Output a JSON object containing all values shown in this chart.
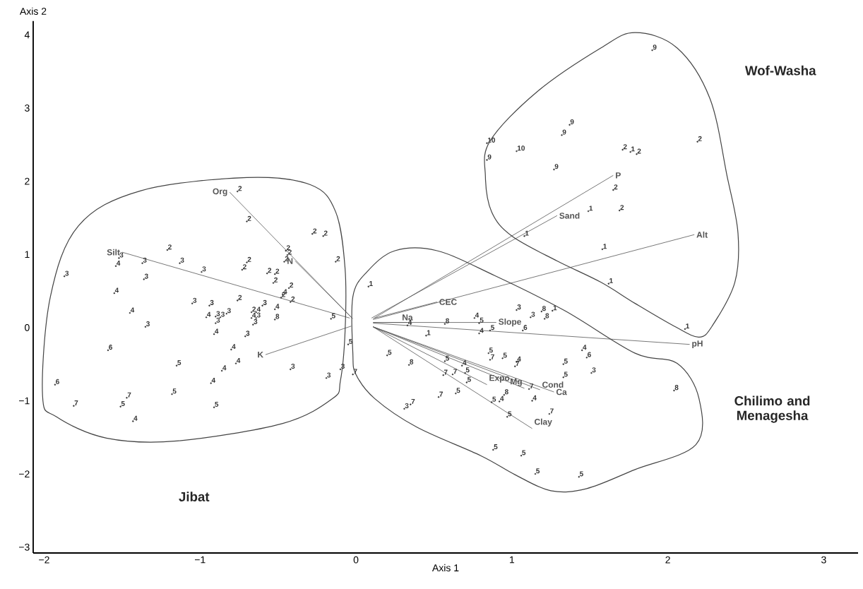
{
  "chart_data": {
    "type": "scatter",
    "xlabel": "Axis 1",
    "ylabel": "Axis 2",
    "xlim": [
      -2.07,
      3.22
    ],
    "ylim": [
      -3.08,
      4.19
    ],
    "xticks": [
      {
        "value": -2,
        "label": "−2"
      },
      {
        "value": -1,
        "label": "−1"
      },
      0,
      1,
      2,
      3
    ],
    "yticks": [
      {
        "value": -3,
        "label": "−3"
      },
      {
        "value": -2,
        "label": "−2"
      },
      {
        "value": -1,
        "label": "−1"
      },
      0,
      1,
      2,
      3,
      4
    ],
    "annotations": [
      "Wof-Washa",
      "Chilimo and Menagesha",
      "Jibat"
    ],
    "series": [
      {
        "name": "1",
        "color": "#333333",
        "x": [
          0.08,
          1.62,
          2.11,
          1.26,
          0.45,
          1.76,
          1.49,
          1.08,
          1.58
        ],
        "values": [
          0.56,
          0.6,
          -0.02,
          0.23,
          -0.11,
          2.4,
          1.59,
          1.25,
          1.07
        ]
      },
      {
        "name": "2",
        "color": "#333333",
        "x": [
          -0.76,
          -0.7,
          -0.28,
          -0.21,
          -1.21,
          -0.45,
          -0.44,
          -0.13,
          -0.46,
          -0.7,
          -0.73,
          -0.57,
          -0.52,
          -0.53,
          -0.43,
          -0.48,
          -0.42,
          -0.76,
          -0.67,
          1.71,
          1.8,
          2.19,
          1.65,
          1.69
        ],
        "values": [
          1.86,
          1.45,
          1.28,
          1.25,
          1.06,
          1.05,
          0.99,
          0.9,
          0.9,
          0.89,
          0.79,
          0.74,
          0.73,
          0.61,
          0.54,
          0.41,
          0.35,
          0.37,
          0.21,
          2.43,
          2.37,
          2.54,
          1.88,
          1.6
        ]
      },
      {
        "name": "3",
        "color": "#333333",
        "x": [
          -1.52,
          -1.37,
          -1.13,
          -0.99,
          -1.87,
          -1.36,
          -1.05,
          -0.94,
          -0.6,
          -0.9,
          -0.87,
          -0.83,
          -0.9,
          -0.64,
          -0.66,
          -1.35,
          -0.71,
          -0.42,
          -0.1,
          -0.19,
          1.03,
          1.12,
          1.51,
          0.31
        ],
        "values": [
          0.95,
          0.88,
          0.88,
          0.76,
          0.7,
          0.66,
          0.33,
          0.3,
          0.3,
          0.15,
          0.14,
          0.19,
          0.06,
          0.13,
          0.04,
          0.01,
          -0.12,
          -0.57,
          -0.57,
          -0.69,
          0.24,
          0.14,
          -0.62,
          -1.11
        ]
      },
      {
        "name": "4",
        "color": "#333333",
        "x": [
          -1.54,
          -0.47,
          -1.55,
          -1.45,
          -0.52,
          -0.96,
          -0.64,
          -0.67,
          -0.91,
          -0.8,
          -0.77,
          -0.86,
          -0.93,
          -1.43,
          0.33,
          0.76,
          0.79,
          0.68,
          1.03,
          1.45,
          0.92,
          1.13
        ],
        "values": [
          0.84,
          0.45,
          0.47,
          0.2,
          0.25,
          0.14,
          0.21,
          0.13,
          -0.09,
          -0.3,
          -0.49,
          -0.59,
          -0.76,
          -1.28,
          0.03,
          0.13,
          -0.08,
          -0.52,
          -0.47,
          -0.31,
          -1.01,
          -1.0
        ]
      },
      {
        "name": "5",
        "color": "#333333",
        "x": [
          -0.16,
          -0.05,
          -1.15,
          -1.51,
          -1.18,
          -0.91,
          0.79,
          0.86,
          0.2,
          0.57,
          0.7,
          0.71,
          0.85,
          0.94,
          1.33,
          1.33,
          0.64,
          0.87,
          0.97,
          0.88,
          1.06,
          1.15,
          1.43
        ],
        "values": [
          0.12,
          -0.23,
          -0.52,
          -1.08,
          -0.91,
          -1.09,
          0.06,
          -0.04,
          -0.38,
          -0.46,
          -0.62,
          -0.75,
          -0.35,
          -0.42,
          -0.5,
          -0.68,
          -0.9,
          -1.02,
          -1.22,
          -1.67,
          -1.75,
          -2.0,
          -2.04
        ]
      },
      {
        "name": "6",
        "color": "#333333",
        "x": [
          -1.59,
          -1.93,
          1.07,
          1.48
        ],
        "values": [
          -0.31,
          -0.78,
          -0.04,
          -0.41
        ]
      },
      {
        "name": "7",
        "color": "#333333",
        "x": [
          -0.02,
          -1.81,
          -1.47,
          0.56,
          0.62,
          0.86,
          1.02,
          1.11,
          0.53,
          1.24,
          0.35
        ],
        "values": [
          -0.64,
          -1.07,
          -0.96,
          -0.65,
          -0.64,
          -0.44,
          -0.53,
          -0.84,
          -0.95,
          -1.18,
          -1.05
        ]
      },
      {
        "name": "8",
        "color": "#333333",
        "x": [
          -0.52,
          0.57,
          1.19,
          1.21,
          0.34,
          2.04,
          0.95
        ],
        "values": [
          0.11,
          0.05,
          0.22,
          0.12,
          -0.51,
          -0.86,
          -0.92
        ]
      },
      {
        "name": "9",
        "color": "#333333",
        "x": [
          1.9,
          1.37,
          1.32,
          0.84,
          1.27
        ],
        "values": [
          3.79,
          2.77,
          2.63,
          2.29,
          2.16
        ]
      },
      {
        "name": "10",
        "color": "#333333",
        "x": [
          0.84,
          1.03
        ],
        "values": [
          2.52,
          2.41
        ]
      },
      {
        "type": "line",
        "name": "Org",
        "color": "#555555",
        "x": [
          -0.03,
          -0.81
        ],
        "values": [
          0.14,
          1.85
        ]
      },
      {
        "type": "line",
        "name": "N",
        "color": "#555555",
        "x": [
          -0.02,
          -0.39
        ],
        "values": [
          0.12,
          0.91
        ]
      },
      {
        "type": "line",
        "name": "Silt",
        "color": "#555555",
        "x": [
          -0.04,
          -1.5
        ],
        "values": [
          0.13,
          1.03
        ]
      },
      {
        "type": "line",
        "name": "K",
        "color": "#555555",
        "x": [
          -0.03,
          -0.58
        ],
        "values": [
          0.02,
          -0.37
        ]
      },
      {
        "type": "line",
        "name": "CEC",
        "color": "#555555",
        "x": [
          0.12,
          0.52
        ],
        "values": [
          0.13,
          0.35
        ]
      },
      {
        "type": "line",
        "name": "Sand",
        "color": "#555555",
        "x": [
          0.1,
          1.29
        ],
        "values": [
          0.13,
          1.53
        ]
      },
      {
        "type": "line",
        "name": "P",
        "color": "#555555",
        "x": [
          0.11,
          1.65
        ],
        "values": [
          0.12,
          2.08
        ]
      },
      {
        "type": "line",
        "name": "Alt",
        "color": "#555555",
        "x": [
          0.11,
          2.17
        ],
        "values": [
          0.11,
          1.27
        ]
      },
      {
        "type": "line",
        "name": "Na",
        "color": "#555555",
        "x": [
          0.11,
          0.33
        ],
        "values": [
          0.07,
          0.07
        ]
      },
      {
        "type": "line",
        "name": "Slope",
        "color": "#555555",
        "x": [
          0.11,
          0.9
        ],
        "values": [
          0.07,
          0.07
        ]
      },
      {
        "type": "line",
        "name": "pH",
        "color": "#555555",
        "x": [
          0.11,
          2.14
        ],
        "values": [
          0.06,
          -0.23
        ]
      },
      {
        "type": "line",
        "name": "Expo",
        "color": "#555555",
        "x": [
          0.11,
          0.84
        ],
        "values": [
          0.01,
          -0.78
        ]
      },
      {
        "type": "line",
        "name": "Mg",
        "color": "#555555",
        "x": [
          0.11,
          1.08
        ],
        "values": [
          0.01,
          -0.83
        ]
      },
      {
        "type": "line",
        "name": "Cond",
        "color": "#555555",
        "x": [
          0.11,
          1.18
        ],
        "values": [
          0.01,
          -0.85
        ]
      },
      {
        "type": "line",
        "name": "Ca",
        "color": "#555555",
        "x": [
          0.11,
          1.27
        ],
        "values": [
          0.01,
          -0.88
        ]
      },
      {
        "type": "line",
        "name": "Clay",
        "color": "#555555",
        "x": [
          0.11,
          1.13
        ],
        "values": [
          0.01,
          -1.38
        ]
      }
    ]
  }
}
